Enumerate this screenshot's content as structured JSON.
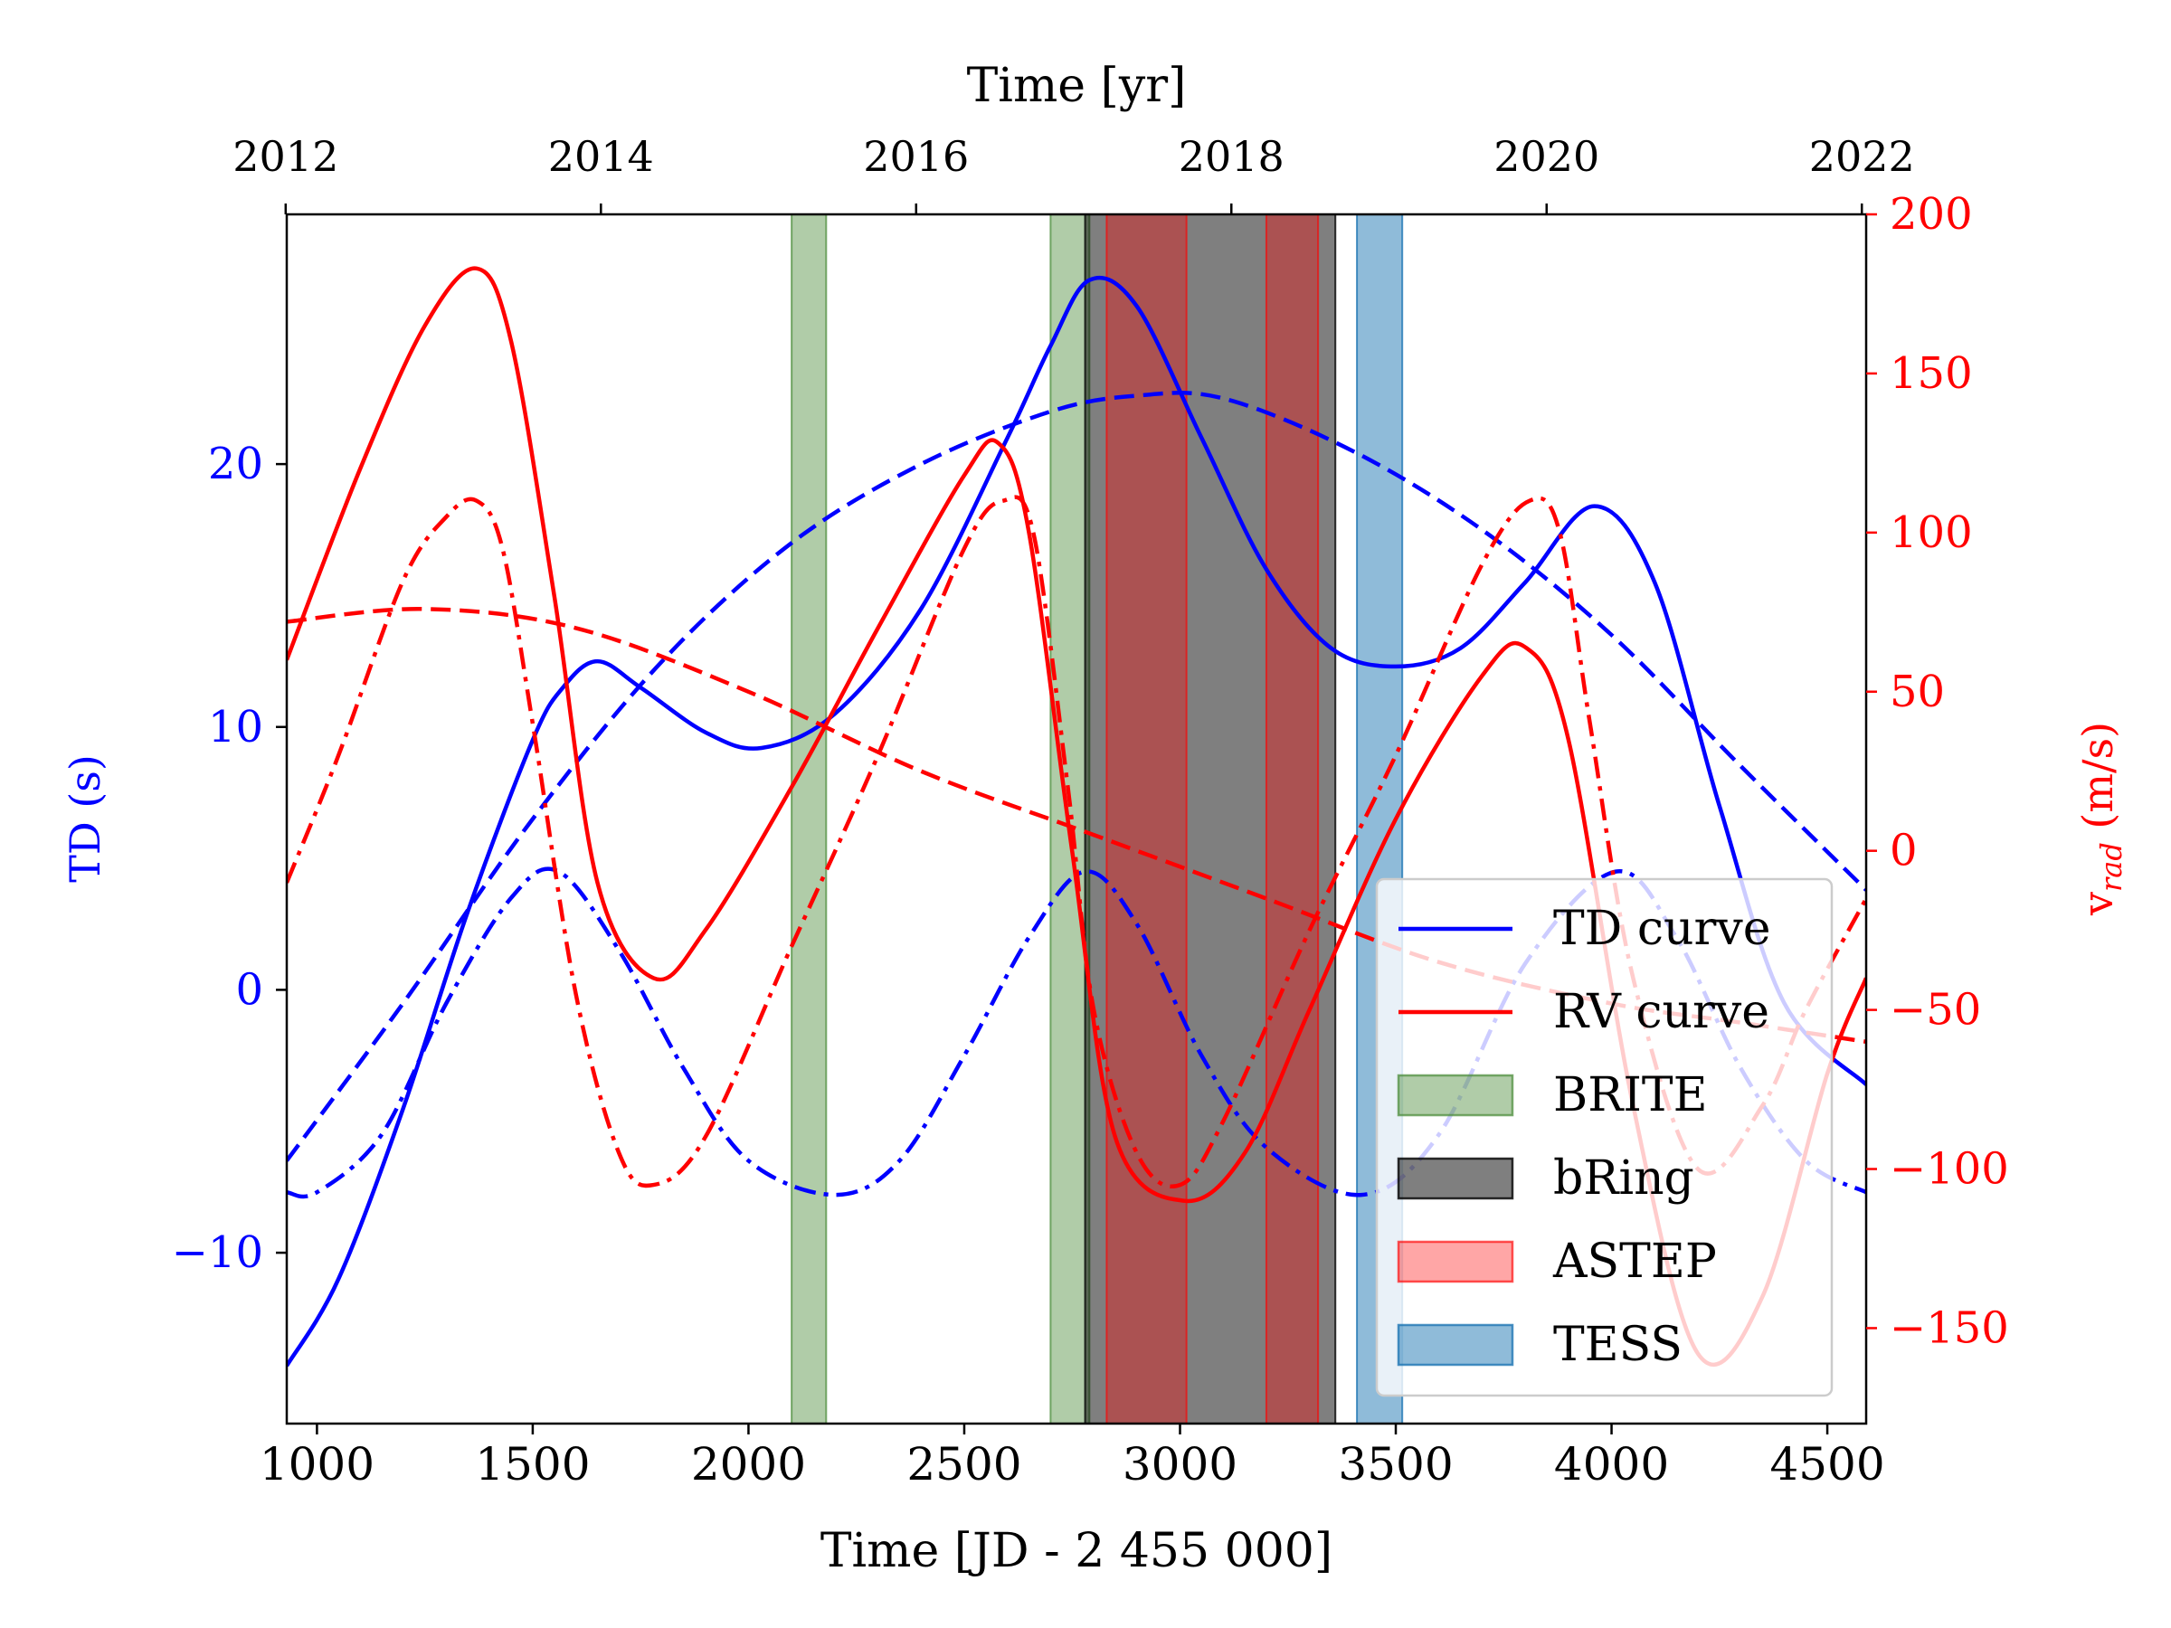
{
  "chart_data": {
    "type": "line",
    "xlabel": "Time [JD - 2 455 000]",
    "top_xlabel": "Time [yr]",
    "ylabel_left": "TD (s)",
    "ylabel_right_main": "v",
    "ylabel_right_sub": "rad",
    "ylabel_right_unit": " (m/s)",
    "xlim": [
      930,
      4590
    ],
    "ylim_left": [
      -16.5,
      29.5
    ],
    "ylim_right": [
      -180,
      200
    ],
    "xticks": [
      1000,
      1500,
      2000,
      2500,
      3000,
      3500,
      4000,
      4500
    ],
    "yticks_left": [
      -10,
      0,
      10,
      20
    ],
    "yticks_right": [
      -150,
      -100,
      -50,
      0,
      50,
      100,
      150,
      200
    ],
    "top_ticks": [
      2012,
      2014,
      2016,
      2018,
      2020,
      2022
    ],
    "grid": false,
    "legend_position": "lower-right",
    "colors": {
      "td": "#0000ff",
      "rv": "#ff0000",
      "left_axis": "#0000ff",
      "right_axis": "#ff0000"
    },
    "legend": [
      {
        "label": "TD curve",
        "kind": "line",
        "color": "#0000ff"
      },
      {
        "label": "RV curve",
        "kind": "line",
        "color": "#ff0000"
      },
      {
        "label": "BRITE",
        "kind": "patch",
        "color": "#4f8f3f",
        "opacity": 0.45
      },
      {
        "label": "bRing",
        "kind": "patch",
        "color": "#000000",
        "opacity": 0.5
      },
      {
        "label": "ASTEP",
        "kind": "patch",
        "color": "#ff0000",
        "opacity": 0.35
      },
      {
        "label": "TESS",
        "kind": "patch",
        "color": "#1f77b4",
        "opacity": 0.5
      }
    ],
    "spans": [
      {
        "instrument": "BRITE",
        "x0": 2100,
        "x1": 2180,
        "color": "#4f8f3f",
        "opacity": 0.45
      },
      {
        "instrument": "BRITE",
        "x0": 2700,
        "x1": 2790,
        "color": "#4f8f3f",
        "opacity": 0.45
      },
      {
        "instrument": "bRing",
        "x0": 2780,
        "x1": 3360,
        "color": "#000000",
        "opacity": 0.5
      },
      {
        "instrument": "ASTEP",
        "x0": 2830,
        "x1": 3015,
        "color": "#ff0000",
        "opacity": 0.35
      },
      {
        "instrument": "ASTEP",
        "x0": 3200,
        "x1": 3320,
        "color": "#ff0000",
        "opacity": 0.35
      },
      {
        "instrument": "TESS",
        "x0": 3410,
        "x1": 3515,
        "color": "#1f77b4",
        "opacity": 0.5
      }
    ],
    "series": [
      {
        "axis": "left",
        "style": "solid",
        "color": "#0000ff",
        "x": [
          930,
          1050,
          1200,
          1350,
          1500,
          1570,
          1650,
          1750,
          1900,
          2030,
          2200,
          2400,
          2600,
          2700,
          2790,
          2900,
          3050,
          3200,
          3350,
          3500,
          3650,
          3800,
          3960,
          4100,
          4250,
          4400,
          4590
        ],
        "y": [
          -14.3,
          -11,
          -4.5,
          3,
          9.5,
          11.5,
          12.5,
          11.5,
          9.8,
          9.2,
          10.5,
          14.5,
          21,
          24.5,
          27,
          26,
          21,
          16,
          13,
          12.3,
          13,
          15.5,
          18.4,
          15.5,
          7,
          -0.5,
          -3.6
        ]
      },
      {
        "axis": "left",
        "style": "dashed",
        "color": "#0000ff",
        "x": [
          930,
          1200,
          1500,
          1800,
          2100,
          2400,
          2700,
          2900,
          3100,
          3400,
          3700,
          4000,
          4300,
          4590
        ],
        "y": [
          -6.5,
          -0.5,
          6.5,
          12.5,
          17,
          20,
          22,
          22.6,
          22.5,
          20.5,
          17.5,
          13.5,
          8.5,
          3.8
        ]
      },
      {
        "axis": "left",
        "style": "dashdot",
        "color": "#0000ff",
        "x": [
          930,
          1000,
          1150,
          1300,
          1450,
          1560,
          1700,
          1850,
          2000,
          2200,
          2350,
          2500,
          2650,
          2780,
          2900,
          3050,
          3200,
          3420,
          3600,
          3800,
          4010,
          4150,
          4300,
          4450,
          4590
        ],
        "y": [
          -7.7,
          -7.7,
          -5.5,
          -0.5,
          3.5,
          4.5,
          1.5,
          -3,
          -6.5,
          -7.8,
          -6.5,
          -2.5,
          2,
          4.5,
          2.5,
          -2.5,
          -6,
          -7.8,
          -5.5,
          1,
          4.5,
          2,
          -3,
          -6.5,
          -7.7
        ]
      },
      {
        "axis": "right",
        "style": "solid",
        "color": "#ff0000",
        "x": [
          930,
          1100,
          1250,
          1370,
          1450,
          1550,
          1650,
          1780,
          1900,
          2100,
          2300,
          2500,
          2580,
          2650,
          2750,
          2850,
          3010,
          3150,
          3300,
          3500,
          3700,
          3800,
          3900,
          4050,
          4200,
          4350,
          4500,
          4590
        ],
        "y": [
          60,
          120,
          165,
          183,
          160,
          80,
          -10,
          -40,
          -25,
          20,
          70,
          118,
          128,
          100,
          0,
          -90,
          -110,
          -95,
          -50,
          10,
          55,
          64,
          35,
          -80,
          -158,
          -140,
          -70,
          -40
        ]
      },
      {
        "axis": "right",
        "style": "dashed",
        "color": "#ff0000",
        "x": [
          930,
          1250,
          1600,
          2000,
          2400,
          2800,
          3200,
          3600,
          4000,
          4300,
          4590
        ],
        "y": [
          72,
          76,
          70,
          50,
          25,
          5,
          -15,
          -35,
          -48,
          -54,
          -60
        ]
      },
      {
        "axis": "right",
        "style": "dashdot",
        "color": "#ff0000",
        "x": [
          930,
          1050,
          1200,
          1300,
          1370,
          1430,
          1500,
          1600,
          1700,
          1780,
          1900,
          2100,
          2300,
          2500,
          2590,
          2660,
          2740,
          2800,
          2900,
          3000,
          3100,
          3300,
          3500,
          3700,
          3810,
          3880,
          3950,
          4050,
          4200,
          4350,
          4450,
          4590
        ],
        "y": [
          -10,
          30,
          85,
          105,
          110,
          95,
          40,
          -45,
          -95,
          -105,
          -90,
          -30,
          30,
          95,
          110,
          100,
          20,
          -50,
          -95,
          -105,
          -85,
          -25,
          30,
          90,
          110,
          100,
          40,
          -40,
          -100,
          -80,
          -50,
          -15
        ]
      }
    ]
  }
}
